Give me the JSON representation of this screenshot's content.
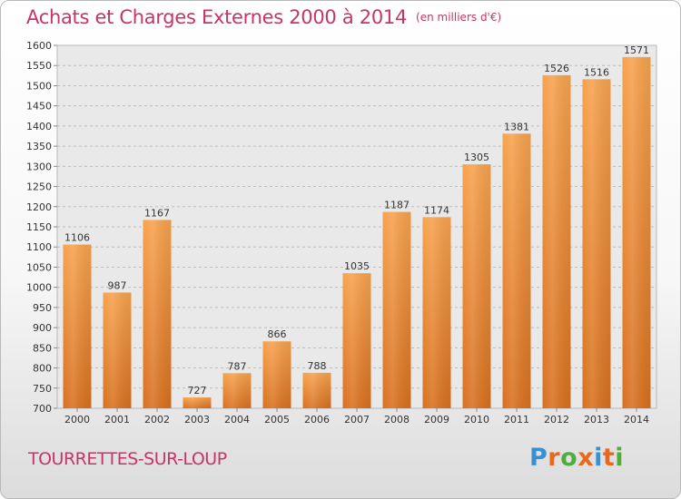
{
  "chart_data": {
    "type": "bar",
    "title": "Achats et Charges Externes 2000 à 2014",
    "subtitle": "(en milliers d'€)",
    "categories": [
      "2000",
      "2001",
      "2002",
      "2003",
      "2004",
      "2005",
      "2006",
      "2007",
      "2008",
      "2009",
      "2010",
      "2011",
      "2012",
      "2013",
      "2014"
    ],
    "values": [
      1106,
      987,
      1167,
      727,
      787,
      866,
      788,
      1035,
      1187,
      1174,
      1305,
      1381,
      1526,
      1516,
      1571
    ],
    "ylim": [
      700,
      1600
    ],
    "yticks": [
      700,
      750,
      800,
      850,
      900,
      950,
      1000,
      1050,
      1100,
      1150,
      1200,
      1250,
      1300,
      1350,
      1400,
      1450,
      1500,
      1550,
      1600
    ],
    "grid": true,
    "bar_color": "#f08a2c"
  },
  "location": "TOURRETTES-SUR-LOUP",
  "brand": {
    "name": "Proxiti",
    "colors": [
      "#3a8fd0",
      "#e8681e",
      "#4cae3c",
      "#e8681e",
      "#3a8fd0",
      "#e8681e",
      "#4cae3c"
    ]
  }
}
